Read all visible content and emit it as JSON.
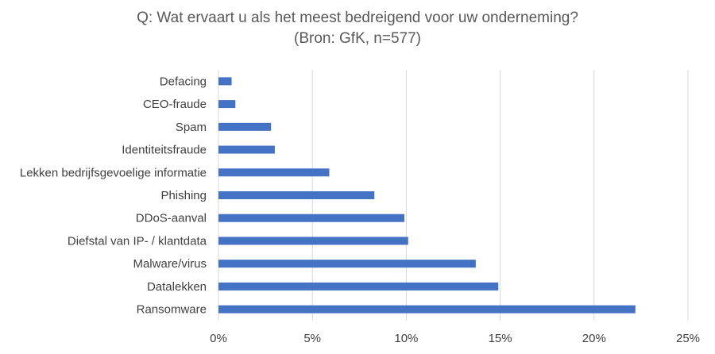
{
  "chart_data": {
    "type": "bar",
    "orientation": "horizontal",
    "title": "Q: Wat ervaart u als het meest bedreigend voor uw onderneming?",
    "subtitle": "(Bron: GfK, n=577)",
    "categories": [
      "Defacing",
      "CEO-fraude",
      "Spam",
      "Identiteitsfraude",
      "Lekken bedrijfsgevoelige informatie",
      "Phishing",
      "DDoS-aanval",
      "Diefstal van IP- / klantdata",
      "Malware/virus",
      "Datalekken",
      "Ransomware"
    ],
    "values": [
      0.7,
      0.9,
      2.8,
      3.0,
      5.9,
      8.3,
      9.9,
      10.1,
      13.7,
      14.9,
      22.2
    ],
    "x_unit": "%",
    "xlim": [
      0,
      25
    ],
    "x_ticks": [
      "0%",
      "5%",
      "10%",
      "15%",
      "20%",
      "25%"
    ],
    "x_tick_values": [
      0,
      5,
      10,
      15,
      20,
      25
    ],
    "grid": "vertical",
    "legend": "none",
    "bar_color": "#4472C4",
    "grid_color": "#D9D9D9"
  }
}
